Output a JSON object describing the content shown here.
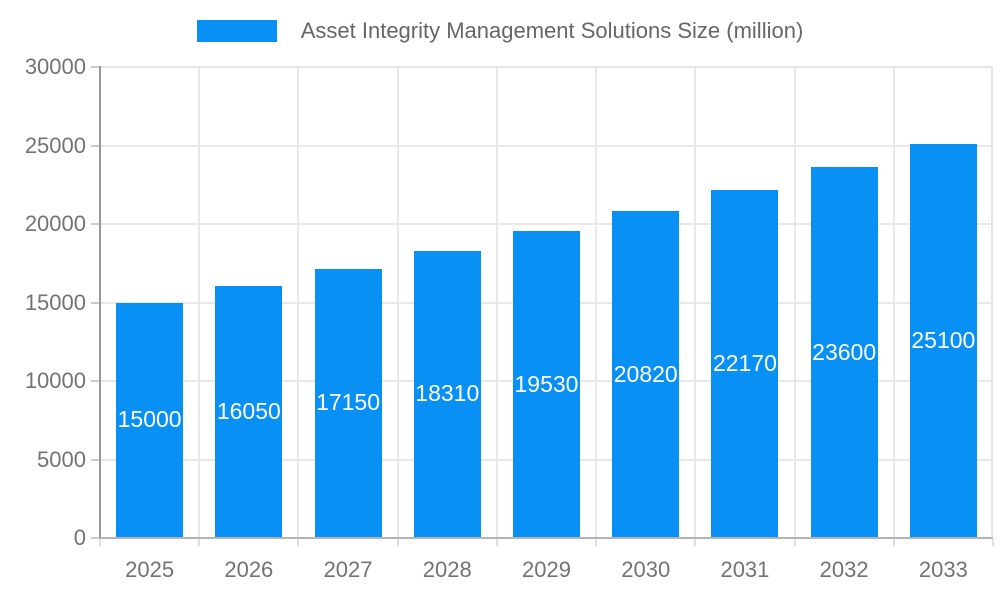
{
  "chart_data": {
    "type": "bar",
    "title": "Asset Integrity Management Solutions Size (million)",
    "categories": [
      "2025",
      "2026",
      "2027",
      "2028",
      "2029",
      "2030",
      "2031",
      "2032",
      "2033"
    ],
    "series": [
      {
        "name": "Asset Integrity Management Solutions Size (million)",
        "values": [
          15000,
          16050,
          17150,
          18310,
          19530,
          20820,
          22170,
          23600,
          25100
        ]
      }
    ],
    "value_labels_shown": true,
    "xlabel": "",
    "ylabel": "",
    "ylim": [
      0,
      30000
    ],
    "yticks": [
      0,
      5000,
      10000,
      15000,
      20000,
      25000,
      30000
    ],
    "grid": true,
    "legend_position": "top-center"
  },
  "colors": {
    "bar": "#0890f5",
    "grid": "#e8e8e8",
    "axis_y_line": "#999999",
    "axis_x_line": "#b3b3b3",
    "plot_border": "#e6e6e6",
    "tick_label": "#737373",
    "legend_text": "#666666",
    "value_label": "#ffffff",
    "background": "#ffffff"
  }
}
